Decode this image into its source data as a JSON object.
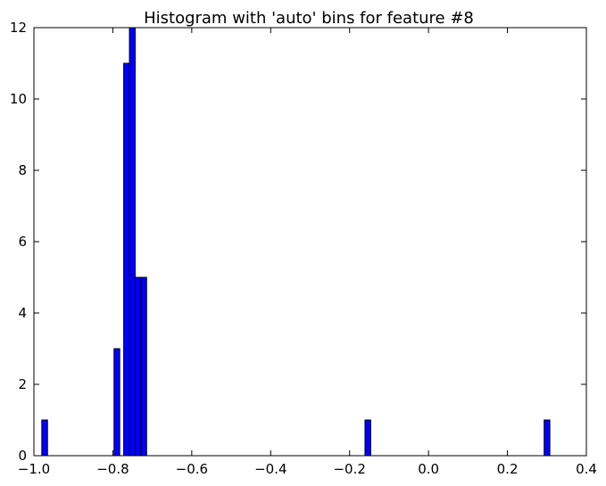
{
  "chart_data": {
    "type": "bar",
    "title": "Histogram with 'auto' bins for feature #8",
    "xlabel": "",
    "ylabel": "",
    "xlim": [
      -1.0,
      0.4
    ],
    "ylim": [
      0,
      12
    ],
    "xticks": [
      -1.0,
      -0.8,
      -0.6,
      -0.4,
      -0.2,
      0.0,
      0.2,
      0.4
    ],
    "xtick_labels": [
      "−1.0",
      "−0.8",
      "−0.6",
      "−0.4",
      "−0.2",
      "0.0",
      "0.2",
      "0.4"
    ],
    "yticks": [
      0,
      2,
      4,
      6,
      8,
      10,
      12
    ],
    "ytick_labels": [
      "0",
      "2",
      "4",
      "6",
      "8",
      "10",
      "12"
    ],
    "bin_width": 0.0145,
    "bins": [
      {
        "x0": -0.98,
        "count": 1
      },
      {
        "x0": -0.797,
        "count": 3
      },
      {
        "x0": -0.7725,
        "count": 11
      },
      {
        "x0": -0.7579,
        "count": 12
      },
      {
        "x0": -0.7434,
        "count": 5
      },
      {
        "x0": -0.7289,
        "count": 5
      },
      {
        "x0": -0.161,
        "count": 1
      },
      {
        "x0": 0.293,
        "count": 1
      }
    ],
    "bar_color": "#0000ff",
    "edge_color": "#000000",
    "grid": false
  }
}
